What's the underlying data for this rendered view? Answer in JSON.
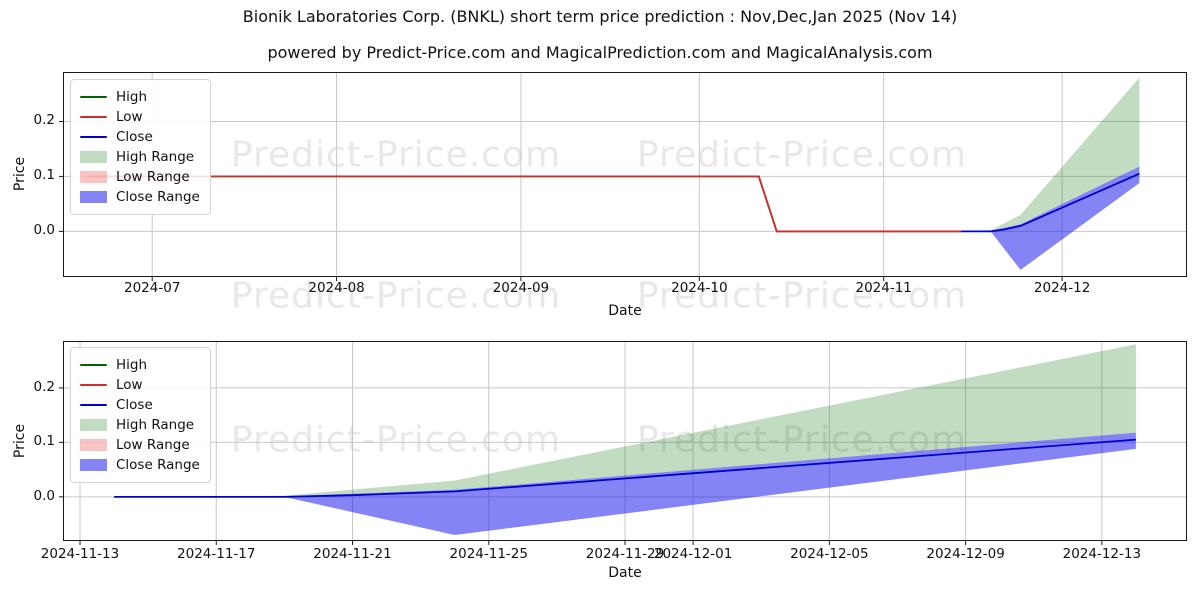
{
  "header": {
    "title": "Bionik Laboratories Corp. (BNKL) short term price prediction : Nov,Dec,Jan 2025 (Nov 14)",
    "subtitle": "powered by Predict-Price.com and MagicalPrediction.com and MagicalAnalysis.com"
  },
  "watermark": {
    "text": "Predict-Price.com",
    "color": "#e8e8e8"
  },
  "colors": {
    "high_line": "#006400",
    "low_line": "#d22b2b",
    "close_line": "#0000cd",
    "high_band": "rgba(0,110,0,0.24)",
    "low_band": "rgba(240,60,60,0.30)",
    "close_band": "rgba(10,10,235,0.50)",
    "grid": "#c8c8c8",
    "frame": "#1a1a1a"
  },
  "chart_data": [
    {
      "type": "line",
      "name": "history-and-prediction-overview",
      "xlabel": "Date",
      "ylabel": "Price",
      "x_unit": "days since 2024-06-16",
      "xlim": [
        0,
        189
      ],
      "ylim": [
        -0.083,
        0.29
      ],
      "grid": true,
      "legend_position": "upper left",
      "xticks": [
        {
          "t": 15,
          "label": "2024-07"
        },
        {
          "t": 46,
          "label": "2024-08"
        },
        {
          "t": 77,
          "label": "2024-09"
        },
        {
          "t": 107,
          "label": "2024-10"
        },
        {
          "t": 138,
          "label": "2024-11"
        },
        {
          "t": 168,
          "label": "2024-12"
        }
      ],
      "yticks": [
        {
          "v": 0.0,
          "label": "0.0"
        },
        {
          "v": 0.1,
          "label": "0.1"
        },
        {
          "v": 0.2,
          "label": "0.2"
        }
      ],
      "legend": [
        {
          "label": "High",
          "swatch": "line",
          "color": "#006400"
        },
        {
          "label": "Low",
          "swatch": "line",
          "color": "#d22b2b"
        },
        {
          "label": "Close",
          "swatch": "line",
          "color": "#0000cd"
        },
        {
          "label": "High Range",
          "swatch": "patch",
          "color": "rgba(0,110,0,0.24)"
        },
        {
          "label": "Low Range",
          "swatch": "patch",
          "color": "rgba(240,60,60,0.30)"
        },
        {
          "label": "Close Range",
          "swatch": "patch",
          "color": "rgba(10,10,235,0.50)"
        }
      ],
      "bands": [
        {
          "name": "High Range",
          "color": "rgba(0,110,0,0.24)",
          "upper": [
            [
              151,
              0
            ],
            [
              156,
              0.002
            ],
            [
              161,
              0.03
            ],
            [
              181,
              0.28
            ]
          ],
          "lower": [
            [
              151,
              0
            ],
            [
              156,
              0.001
            ],
            [
              161,
              0.013
            ],
            [
              181,
              0.118
            ]
          ]
        },
        {
          "name": "Low Range",
          "color": "rgba(240,60,60,0.30)",
          "upper": [
            [
              151,
              0
            ],
            [
              181,
              0
            ]
          ],
          "lower": [
            [
              151,
              0
            ],
            [
              181,
              0
            ]
          ]
        },
        {
          "name": "Close Range",
          "color": "rgba(10,10,235,0.50)",
          "upper": [
            [
              151,
              0
            ],
            [
              156,
              0.001
            ],
            [
              161,
              0.013
            ],
            [
              181,
              0.118
            ]
          ],
          "lower": [
            [
              151,
              0
            ],
            [
              156,
              0
            ],
            [
              161,
              -0.07
            ],
            [
              181,
              0.088
            ]
          ]
        }
      ],
      "lines": [
        {
          "name": "High",
          "color": "#006400",
          "points": [
            [
              4,
              0.1
            ],
            [
              117,
              0.1
            ],
            [
              120,
              0
            ],
            [
              151,
              0
            ]
          ]
        },
        {
          "name": "Low",
          "color": "#d22b2b",
          "points": [
            [
              4,
              0.1
            ],
            [
              117,
              0.1
            ],
            [
              120,
              0
            ],
            [
              151,
              0
            ]
          ]
        },
        {
          "name": "Close",
          "color": "#0000cd",
          "points": [
            [
              151,
              0
            ],
            [
              156,
              0
            ],
            [
              158,
              0.003
            ],
            [
              161,
              0.01
            ],
            [
              181,
              0.105
            ]
          ]
        }
      ]
    },
    {
      "type": "line",
      "name": "prediction-window-detail",
      "xlabel": "Date",
      "ylabel": "Price",
      "x_unit": "days since 2024-11-14",
      "xlim": [
        -1.5,
        31.5
      ],
      "ylim": [
        -0.081,
        0.286
      ],
      "grid": true,
      "legend_position": "upper left",
      "xticks": [
        {
          "t": -1,
          "label": "2024-11-13"
        },
        {
          "t": 3,
          "label": "2024-11-17"
        },
        {
          "t": 7,
          "label": "2024-11-21"
        },
        {
          "t": 11,
          "label": "2024-11-25"
        },
        {
          "t": 15,
          "label": "2024-11-29"
        },
        {
          "t": 17,
          "label": "2024-12-01"
        },
        {
          "t": 21,
          "label": "2024-12-05"
        },
        {
          "t": 25,
          "label": "2024-12-09"
        },
        {
          "t": 29,
          "label": "2024-12-13"
        }
      ],
      "yticks": [
        {
          "v": 0.0,
          "label": "0.0"
        },
        {
          "v": 0.1,
          "label": "0.1"
        },
        {
          "v": 0.2,
          "label": "0.2"
        }
      ],
      "legend": [
        {
          "label": "High",
          "swatch": "line",
          "color": "#006400"
        },
        {
          "label": "Low",
          "swatch": "line",
          "color": "#d22b2b"
        },
        {
          "label": "Close",
          "swatch": "line",
          "color": "#0000cd"
        },
        {
          "label": "High Range",
          "swatch": "patch",
          "color": "rgba(0,110,0,0.24)"
        },
        {
          "label": "Low Range",
          "swatch": "patch",
          "color": "rgba(240,60,60,0.30)"
        },
        {
          "label": "Close Range",
          "swatch": "patch",
          "color": "rgba(10,10,235,0.50)"
        }
      ],
      "bands": [
        {
          "name": "High Range",
          "color": "rgba(0,110,0,0.24)",
          "upper": [
            [
              0,
              0
            ],
            [
              5,
              0.002
            ],
            [
              10,
              0.03
            ],
            [
              30,
              0.28
            ]
          ],
          "lower": [
            [
              0,
              0
            ],
            [
              5,
              0.001
            ],
            [
              10,
              0.013
            ],
            [
              30,
              0.118
            ]
          ]
        },
        {
          "name": "Low Range",
          "color": "rgba(240,60,60,0.30)",
          "upper": [
            [
              0,
              0
            ],
            [
              30,
              0
            ]
          ],
          "lower": [
            [
              0,
              0
            ],
            [
              30,
              0
            ]
          ]
        },
        {
          "name": "Close Range",
          "color": "rgba(10,10,235,0.50)",
          "upper": [
            [
              0,
              0
            ],
            [
              5,
              0.001
            ],
            [
              10,
              0.013
            ],
            [
              30,
              0.118
            ]
          ],
          "lower": [
            [
              0,
              0
            ],
            [
              5,
              0
            ],
            [
              10,
              -0.07
            ],
            [
              30,
              0.088
            ]
          ]
        }
      ],
      "lines": [
        {
          "name": "High",
          "color": "#006400",
          "points": []
        },
        {
          "name": "Low",
          "color": "#d22b2b",
          "points": []
        },
        {
          "name": "Close",
          "color": "#0000cd",
          "points": [
            [
              0,
              0
            ],
            [
              5,
              0
            ],
            [
              7,
              0.003
            ],
            [
              10,
              0.01
            ],
            [
              30,
              0.105
            ]
          ]
        }
      ]
    }
  ]
}
